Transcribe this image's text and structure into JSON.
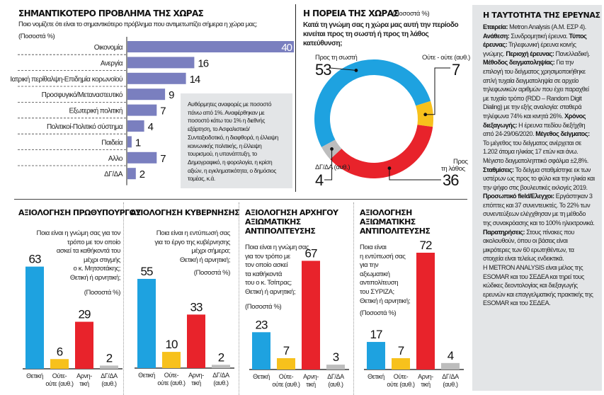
{
  "chart_data": [
    {
      "type": "bar",
      "orientation": "horizontal",
      "title": "ΣΗΜΑΝΤΙΚΟΤΕΡΟ ΠΡΟΒΛΗΜΑ ΤΗΣ ΧΩΡΑΣ",
      "subtitle": "Ποιο νομίζετε ότι είναι το σημαντικότερο πρόβλημα που αντιμετωπίζει σήμερα η χώρα μας;",
      "unit_label": "(Ποσοστά %)",
      "categories": [
        "Οικονομία",
        "Ανεργία",
        "Ιατρική περίθαλψη-Επιδημία κορωνοϊού",
        "Προσφυγικό/Μεταναστευτικό",
        "Εξωτερική πολιτική",
        "Πολιτικοί-Πολιτικό σύστημα",
        "Παιδεία",
        "Αλλο",
        "ΔΓ/ΔΑ"
      ],
      "values": [
        40,
        16,
        14,
        9,
        7,
        4,
        1,
        7,
        2
      ],
      "xlim": [
        0,
        40
      ],
      "color": "#7a7fbf",
      "annotation": "Αυθόρμητες αναφορές με ποσοστό πάνω από 1%. Αναφέρθηκαν με ποσοστό κάτω του 1% η διεθνής εξάρτηση, το Ασφαλιστικό/Συνταξιοδοτικό, η διαφθορά, η έλλειψη κοινωνικής πολιτικής, η έλλειψη τουρισμού, η υπανάπτυξη, το Δημογραφικό, η φορολογία, η κρίση αξιών, η εγκληματικότητα, ο δημόσιος τομέας, κ.ά."
    },
    {
      "type": "pie",
      "variant": "donut",
      "title": "Η ΠΟΡΕΙΑ ΤΗΣ ΧΩΡΑΣ",
      "unit_label": "(Ποσοστά %)",
      "question": "Κατά τη γνώμη σας η χώρα μας αυτή την περίοδο κινείται προς τη σωστή ή προς τη λάθος κατεύθυνση;",
      "slices": [
        {
          "label": "Προς τη σωστή",
          "value": 53,
          "color": "#1ea2e0"
        },
        {
          "label": "Ούτε - ούτε (αυθ.)",
          "value": 7,
          "color": "#f7c11c"
        },
        {
          "label": "Προς τη λάθος",
          "value": 36,
          "color": "#e8232b"
        },
        {
          "label": "ΔΓ/ΔΑ (αυθ.)",
          "value": 4,
          "color": "#bdbdbd"
        }
      ]
    },
    {
      "type": "bar",
      "title": "ΑΞΙΟΛΟΓΗΣΗ ΠΡΩΘΥΠΟΥΡΓΟΥ",
      "question": "Ποια είναι η γνώμη σας για τον τρόπο με τον οποίο ασκεί τα καθήκοντά του μέχρι στιγμής ο κ. Μητσοτάκης; Θετική ή αρνητική;",
      "unit_label": "(Ποσοστά %)",
      "categories": [
        "Θετική",
        "Ούτε-ούτε (αυθ.)",
        "Αρνη-τική",
        "ΔΓ/ΔΑ (αυθ.)"
      ],
      "values": [
        63,
        6,
        29,
        2
      ]
    },
    {
      "type": "bar",
      "title": "ΑΞΙΟΛΟΓΗΣΗ ΚΥΒΕΡΝΗΣΗΣ",
      "question": "Ποια είναι η εντύπωσή σας για το έργο της κυβέρνησης μέχρι σήμερα; Θετική ή αρνητική;",
      "unit_label": "(Ποσοστά %)",
      "categories": [
        "Θετική",
        "Ούτε-ούτε (αυθ.)",
        "Αρνη-τική",
        "ΔΓ/ΔΑ (αυθ.)"
      ],
      "values": [
        55,
        10,
        33,
        2
      ]
    },
    {
      "type": "bar",
      "title": "ΑΞΙΟΛΟΓΗΣΗ ΑΡΧΗΓΟΥ ΑΞΙΩΜΑΤΙΚΗΣ ΑΝΤΙΠΟΛΙΤΕΥΣΗΣ",
      "question": "Ποια είναι η γνώμη σας για τον τρόπο με τον οποίο ασκεί τα καθήκοντά του ο κ. Τσίπρας; Θετική ή αρνητική;",
      "unit_label": "(Ποσοστά %)",
      "categories": [
        "Θετική",
        "Ούτε-ούτε (αυθ.)",
        "Αρνη-τική",
        "ΔΓ/ΔΑ (αυθ.)"
      ],
      "values": [
        23,
        7,
        67,
        3
      ]
    },
    {
      "type": "bar",
      "title": "ΑΞΙΟΛΟΓΗΣΗ ΑΞΙΩΜΑΤΙΚΗΣ ΑΝΤΙΠΟΛΙΤΕΥΣΗΣ",
      "question": "Ποια είναι η εντύπωσή σας για την αξιωματική αντιπολίτευση του ΣΥΡΙΖΑ; Θετική ή αρνητική;",
      "unit_label": "(Ποσοστά %)",
      "categories": [
        "Θετική",
        "Ούτε-ούτε (αυθ.)",
        "Αρνη-τική",
        "ΔΓ/ΔΑ (αυθ.)"
      ],
      "values": [
        17,
        7,
        72,
        4
      ]
    }
  ],
  "colors": {
    "positive": "#1ea2e0",
    "neutral": "#f7c11c",
    "negative": "#e8232b",
    "dk": "#bdbdbd",
    "hbar": "#7a7fbf",
    "panel_bg": "#e3e5e7"
  },
  "bar_labels": {
    "positive": "Θετική",
    "neutral_1": "Ούτε-",
    "neutral_2": "ούτε (αυθ.)",
    "negative_1": "Αρνη-",
    "negative_2": "τική",
    "dk_1": "ΔΓ/ΔΑ",
    "dk_2": "(αυθ.)"
  },
  "top_left": {
    "title": "ΣΗΜΑΝΤΙΚΟΤΕΡΟ ΠΡΟΒΛΗΜΑ ΤΗΣ ΧΩΡΑΣ",
    "question": "Ποιο νομίζετε ότι είναι το σημαντικότερο πρόβλημα που αντιμετωπίζει σήμερα η χώρα μας;",
    "unit": "(Ποσοστά %)",
    "note": "Αυθόρμητες αναφορές με ποσοστό πάνω από 1%. Αναφέρθηκαν με ποσοστό κάτω του 1% η διεθνής εξάρτηση, το Ασφαλιστικό/Συνταξιοδοτικό, η διαφθορά, η έλλειψη κοινωνικής πολιτικής, η έλλειψη τουρισμού, η υπανάπτυξη, το Δημογραφικό, η φορολογία, η κρίση αξιών, η εγκληματικότητα, ο δημόσιος τομέας, κ.ά."
  },
  "donut": {
    "title": "Η ΠΟΡΕΙΑ ΤΗΣ ΧΩΡΑΣ",
    "unit": "(Ποσοστά %)",
    "question": "Κατά τη γνώμη σας η χώρα μας αυτή την περίοδο κινείται προς τη σωστή ή προς τη λάθος κατεύθυνση;",
    "label_right": "Προς τη σωστή",
    "label_neutral": "Ούτε - ούτε (αυθ.)",
    "label_wrong_1": "Προς",
    "label_wrong_2": "τη λάθος",
    "label_dk": "ΔΓ/ΔΑ (αυθ.)",
    "val_right": "53",
    "val_neutral": "7",
    "val_wrong": "36",
    "val_dk": "4"
  },
  "panels": [
    {
      "title_lines": [
        "ΑΞΙΟΛΟΓΗΣΗ ΠΡΩΘΥΠΟΥΡΓΟΥ"
      ],
      "question_lines": [
        "Ποια είναι η γνώμη σας για τον",
        "τρόπο με τον οποίο",
        "ασκεί τα καθήκοντά του",
        "μέχρι στιγμής",
        "ο κ. Μητσοτάκης;",
        "Θετική ή αρνητική;"
      ],
      "unit": "(Ποσοστά %)"
    },
    {
      "title_lines": [
        "ΑΞΙΟΛΟΓΗΣΗ ΚΥΒΕΡΝΗΣΗΣ"
      ],
      "question_lines": [
        "Ποια είναι η εντύπωσή σας",
        "για το έργο της κυβέρνησης",
        "μέχρι σήμερα;",
        "Θετική ή αρνητική;"
      ],
      "unit": "(Ποσοστά %)"
    },
    {
      "title_lines": [
        "ΑΞΙΟΛΟΓΗΣΗ ΑΡΧΗΓΟΥ",
        "ΑΞΙΩΜΑΤΙΚΗΣ",
        "ΑΝΤΙΠΟΛΙΤΕΥΣΗΣ"
      ],
      "question_lines": [
        "Ποια είναι η γνώμη σας",
        "για τον τρόπο με",
        "τον οποίο ασκεί",
        "τα καθήκοντά",
        "του ο κ. Τσίπρας;",
        "Θετική ή αρνητική;"
      ],
      "unit": "(Ποσοστά %)"
    },
    {
      "title_lines": [
        "ΑΞΙΟΛΟΓΗΣΗ",
        "ΑΞΙΩΜΑΤΙΚΗΣ",
        "ΑΝΤΙΠΟΛΙΤΕΥΣΗΣ"
      ],
      "question_lines": [
        "Ποια είναι",
        "η εντύπωσή σας",
        "για την",
        "αξιωματική",
        "αντιπολίτευση",
        "του ΣΥΡΙΖΑ;",
        "Θετική ή αρνητική;"
      ],
      "unit": "(Ποσοστά %)"
    }
  ],
  "info": {
    "title": "Η ΤΑΥΤΟΤΗΤΑ ΤΗΣ ΕΡΕΥΝΑΣ",
    "segments": [
      {
        "b": "Εταιρεία:",
        "t": " Metron Analysis (Α.Μ. ΕΣΡ 4). "
      },
      {
        "b": "Ανάθεση:",
        "t": " Συνδρομητική έρευνα. "
      },
      {
        "b": "Τύπος έρευνας:",
        "t": " Τηλεφωνική έρευνα κοινής γνώμης. "
      },
      {
        "b": "Περιοχή έρευνας:",
        "t": " Πανελλαδική. "
      },
      {
        "b": "Μέθοδος δειγματοληψίας:",
        "t": " Για την επιλογή του δείγματος χρησιμοποιήθηκε απλή τυχαία δειγματοληψία σε αρχείο τηλεφωνικών αριθμών που έχει παραχθεί με τυχαίο τρόπο (RDD – Random Digit Dialing) με την εξής αναλογία: σταθερά τηλέφωνα 74% και κινητά 26%. "
      },
      {
        "b": "Χρόνος διεξαγωγής:",
        "t": " Η έρευνα πεδίου διεξήχθη από 24-29/06/2020. "
      },
      {
        "b": "Μέγεθος δείγματος:",
        "t": " Το μέγεθος του δείγματος ανέρχεται σε 1.202 άτομα ηλικίας 17 ετών και άνω. Μέγιστο δειγματοληπτικό σφάλμα ±2,8%. "
      },
      {
        "b": "Σταθμίσεις:",
        "t": " Το δείγμα σταθμίστηκε εκ των υστέρων ως προς το φύλο και την ηλικία και την ψήφο στις βουλευτικές εκλογές 2019. "
      },
      {
        "b": "Προσωπικό field/Ελεγχοι:",
        "t": " Εργάστηκαν 3 επόπτες και 37 συνεντευκτές. Το 22% των συνεντεύξεων ελέγχθησαν με τη μέθοδο της συνακρόασης και το 100% ηλεκτρονικά. "
      },
      {
        "b": "Παρατηρήσεις:",
        "t": " Στους πίνακες που ακολουθούν, όπου οι βάσεις είναι μικρότερες των 60 ερωτηθέντων, τα στοιχεία είναι τελείως ενδεικτικά."
      }
    ],
    "footer": "Η METRON ANALYSIS είναι μέλος της ESOMAR και του ΣΕΔΕΑ και τηρεί τους κώδικες δεοντολογίας και διεξαγωγής ερευνών και επαγγελματικής πρακτικής της ESOMAR και του ΣΕΔΕΑ."
  }
}
